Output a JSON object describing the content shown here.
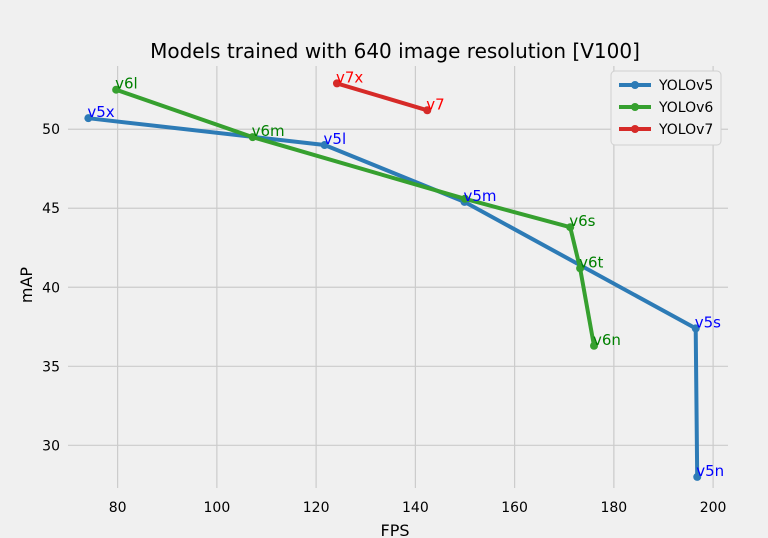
{
  "chart_data": {
    "type": "line",
    "title": "Models trained with 640 image resolution [V100]",
    "xlabel": "FPS",
    "ylabel": "mAP",
    "xlim": [
      70,
      203
    ],
    "ylim": [
      27.3,
      54.0
    ],
    "xticks": [
      80,
      100,
      120,
      140,
      160,
      180,
      200
    ],
    "yticks": [
      30,
      35,
      40,
      45,
      50
    ],
    "grid": true,
    "legend_position": "top-right",
    "series": [
      {
        "name": "YOLOv5",
        "color": "#2d7bb6",
        "label_color": "#0000ff",
        "points": [
          {
            "x": 74.1,
            "y": 50.7,
            "label": "v5x"
          },
          {
            "x": 121.7,
            "y": 49.0,
            "label": "v5l"
          },
          {
            "x": 149.9,
            "y": 45.4,
            "label": "v5m"
          },
          {
            "x": 196.5,
            "y": 37.4,
            "label": "v5s"
          },
          {
            "x": 196.8,
            "y": 28.0,
            "label": "v5n"
          }
        ]
      },
      {
        "name": "YOLOv6",
        "color": "#36a02f",
        "label_color": "#008000",
        "points": [
          {
            "x": 79.7,
            "y": 52.5,
            "label": "v6l"
          },
          {
            "x": 107.2,
            "y": 49.5,
            "label": "v6m"
          },
          {
            "x": 150.0,
            "y": 45.6,
            "label": ""
          },
          {
            "x": 171.2,
            "y": 43.8,
            "label": "v6s"
          },
          {
            "x": 173.2,
            "y": 41.2,
            "label": "v6t"
          },
          {
            "x": 176.0,
            "y": 36.3,
            "label": "v6n"
          }
        ]
      },
      {
        "name": "YOLOv7",
        "color": "#d62a28",
        "label_color": "#ff0000",
        "points": [
          {
            "x": 124.2,
            "y": 52.9,
            "label": "v7x"
          },
          {
            "x": 142.4,
            "y": 51.2,
            "label": "v7"
          }
        ]
      }
    ]
  }
}
